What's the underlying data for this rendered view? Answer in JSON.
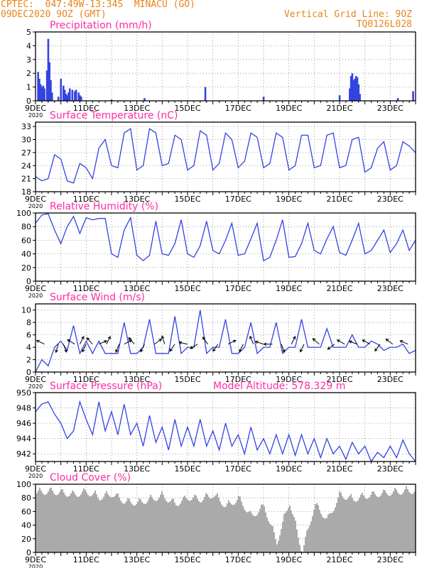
{
  "header": {
    "line1_left": "CPTEC:  047:49W-13:34S  MINACU (GO)",
    "line2_left": "09DEC2020 9OZ (GMT)",
    "line1_right": "Vertical Grid Line: 9OZ",
    "line2_right": "TQ0126L028"
  },
  "colors": {
    "header": "#e8851a",
    "title": "#ff2ba6",
    "line": "#3344e0",
    "cloud": "#aaaaaa",
    "arrow": "#000000"
  },
  "x_ticks": [
    "9DEC",
    "11DEC",
    "13DEC",
    "15DEC",
    "17DEC",
    "19DEC",
    "21DEC",
    "23DEC"
  ],
  "x_tick_sub": "2020",
  "chart_data": [
    {
      "id": "precip",
      "type": "bar",
      "title": "Precipitation (mm/h)",
      "ylim": [
        0,
        5
      ],
      "yticks": [
        "0",
        "1",
        "2",
        "3",
        "4",
        "5"
      ],
      "x": [
        0.1,
        0.15,
        0.2,
        0.25,
        0.3,
        0.35,
        0.45,
        0.5,
        0.55,
        0.6,
        0.65,
        0.9,
        1.0,
        1.1,
        1.15,
        1.2,
        1.25,
        1.3,
        1.35,
        1.45,
        1.55,
        1.6,
        1.7,
        1.75,
        1.8,
        3.0,
        4.3,
        6.7,
        9.0,
        12.0,
        12.4,
        12.45,
        12.5,
        12.55,
        12.6,
        12.65,
        12.7,
        12.75,
        12.8,
        14.3,
        14.9
      ],
      "values": [
        2.1,
        1.6,
        1.2,
        1.0,
        1.1,
        0.9,
        2.2,
        4.5,
        2.8,
        1.5,
        0.6,
        0.3,
        1.6,
        1.1,
        0.8,
        0.5,
        0.4,
        0.6,
        0.9,
        0.8,
        0.7,
        0.8,
        0.6,
        0.4,
        0.3,
        0.1,
        0.2,
        1.0,
        0.3,
        0.4,
        0.9,
        1.8,
        2.0,
        1.5,
        1.6,
        1.8,
        1.7,
        1.2,
        0.5,
        0.2,
        0.7
      ]
    },
    {
      "id": "temp",
      "type": "line",
      "title": "Surface Temperature (nC)",
      "ylim": [
        18,
        34
      ],
      "yticks": [
        "18",
        "21",
        "24",
        "27",
        "30",
        "33"
      ],
      "x": [
        0,
        0.25,
        0.5,
        0.75,
        1,
        1.25,
        1.5,
        1.75,
        2,
        2.25,
        2.5,
        2.75,
        3,
        3.25,
        3.5,
        3.75,
        4,
        4.25,
        4.5,
        4.75,
        5,
        5.25,
        5.5,
        5.75,
        6,
        6.25,
        6.5,
        6.75,
        7,
        7.25,
        7.5,
        7.75,
        8,
        8.25,
        8.5,
        8.75,
        9,
        9.25,
        9.5,
        9.75,
        10,
        10.25,
        10.5,
        10.75,
        11,
        11.25,
        11.5,
        11.75,
        12,
        12.25,
        12.5,
        12.75,
        13,
        13.25,
        13.5,
        13.75,
        14,
        14.25,
        14.5,
        14.75,
        15
      ],
      "values": [
        21.5,
        20.5,
        21,
        26.5,
        25.5,
        20.5,
        20,
        24.5,
        23.5,
        21,
        28,
        30,
        24,
        23.5,
        31.5,
        32.5,
        23,
        24,
        32.5,
        31.5,
        24,
        24.5,
        31,
        30,
        23,
        24,
        32,
        31,
        23,
        24.5,
        31.5,
        30,
        23.5,
        25,
        31.5,
        30.5,
        23.5,
        24.5,
        31.5,
        30.5,
        23,
        24,
        31,
        31,
        23.5,
        24,
        31,
        31.5,
        23.5,
        24,
        30,
        30.5,
        22.5,
        23.5,
        28,
        29.5,
        23,
        24,
        29.5,
        28.5,
        27
      ]
    },
    {
      "id": "rh",
      "type": "line",
      "title": "Relative Humidity (%)",
      "ylim": [
        0,
        100
      ],
      "yticks": [
        "0",
        "20",
        "40",
        "60",
        "80",
        "100"
      ],
      "x": [
        0,
        0.25,
        0.5,
        0.75,
        1,
        1.25,
        1.5,
        1.75,
        2,
        2.25,
        2.5,
        2.75,
        3,
        3.25,
        3.5,
        3.75,
        4,
        4.25,
        4.5,
        4.75,
        5,
        5.25,
        5.5,
        5.75,
        6,
        6.25,
        6.5,
        6.75,
        7,
        7.25,
        7.5,
        7.75,
        8,
        8.25,
        8.5,
        8.75,
        9,
        9.25,
        9.5,
        9.75,
        10,
        10.25,
        10.5,
        10.75,
        11,
        11.25,
        11.5,
        11.75,
        12,
        12.25,
        12.5,
        12.75,
        13,
        13.25,
        13.5,
        13.75,
        14,
        14.25,
        14.5,
        14.75,
        15
      ],
      "values": [
        85,
        97,
        99,
        75,
        55,
        80,
        95,
        70,
        93,
        90,
        92,
        92,
        40,
        35,
        75,
        93,
        38,
        30,
        38,
        88,
        40,
        38,
        55,
        90,
        40,
        35,
        52,
        88,
        45,
        40,
        60,
        85,
        38,
        40,
        62,
        85,
        30,
        35,
        60,
        90,
        35,
        36,
        55,
        85,
        45,
        40,
        62,
        80,
        42,
        38,
        60,
        85,
        40,
        45,
        60,
        75,
        42,
        55,
        75,
        45,
        60
      ]
    },
    {
      "id": "wind",
      "type": "line",
      "title": "Surface Wind (m/s)",
      "ylim": [
        0,
        11
      ],
      "yticks": [
        "0",
        "2",
        "4",
        "6",
        "8",
        "10"
      ],
      "x": [
        0,
        0.25,
        0.5,
        0.75,
        1,
        1.25,
        1.5,
        1.75,
        2,
        2.25,
        2.5,
        2.75,
        3,
        3.25,
        3.5,
        3.75,
        4,
        4.25,
        4.5,
        4.75,
        5,
        5.25,
        5.5,
        5.75,
        6,
        6.25,
        6.5,
        6.75,
        7,
        7.25,
        7.5,
        7.75,
        8,
        8.25,
        8.5,
        8.75,
        9,
        9.25,
        9.5,
        9.75,
        10,
        10.25,
        10.5,
        10.75,
        11,
        11.25,
        11.5,
        11.75,
        12,
        12.25,
        12.5,
        12.75,
        13,
        13.25,
        13.5,
        13.75,
        14,
        14.25,
        14.5,
        14.75,
        15
      ],
      "values": [
        0,
        2,
        1,
        4,
        5,
        3.5,
        7.5,
        3,
        5,
        3,
        5,
        3,
        3,
        3,
        8,
        3,
        3,
        4,
        8.5,
        3,
        3,
        3,
        9,
        3,
        4,
        4,
        10,
        3,
        4,
        4,
        8.5,
        3,
        3,
        4,
        8,
        3,
        4,
        4,
        8,
        3,
        4,
        4,
        8.5,
        4,
        4,
        4,
        7,
        4,
        4,
        4,
        6,
        4,
        4,
        5,
        4.5,
        3.5,
        4,
        4,
        4.5,
        3,
        3.5
      ],
      "arrows": [
        {
          "x": 0.35,
          "u": -1,
          "v": 0.5
        },
        {
          "x": 0.9,
          "u": -0.3,
          "v": -1
        },
        {
          "x": 1.1,
          "u": 0.4,
          "v": -1
        },
        {
          "x": 1.55,
          "u": -0.8,
          "v": 0.5
        },
        {
          "x": 1.75,
          "u": 0.5,
          "v": 1
        },
        {
          "x": 2.0,
          "u": -0.5,
          "v": -1
        },
        {
          "x": 2.25,
          "u": -0.8,
          "v": 0.9
        },
        {
          "x": 2.5,
          "u": 0.7,
          "v": 0.3
        },
        {
          "x": 2.8,
          "u": 0.5,
          "v": 1
        },
        {
          "x": 3.3,
          "u": -0.4,
          "v": -1
        },
        {
          "x": 3.5,
          "u": 0.9,
          "v": 0.5
        },
        {
          "x": 3.9,
          "u": -0.6,
          "v": 0.7
        },
        {
          "x": 4.3,
          "u": -0.5,
          "v": -1
        },
        {
          "x": 4.7,
          "u": 0.8,
          "v": 0.6
        },
        {
          "x": 5.1,
          "u": -0.3,
          "v": 0.9
        },
        {
          "x": 5.5,
          "u": -0.7,
          "v": -1
        },
        {
          "x": 6.0,
          "u": -0.9,
          "v": 0.2
        },
        {
          "x": 6.4,
          "u": -1,
          "v": -0.6
        },
        {
          "x": 6.8,
          "u": -0.5,
          "v": 0.7
        },
        {
          "x": 7.2,
          "u": -0.7,
          "v": -1
        },
        {
          "x": 7.6,
          "u": 0.8,
          "v": 0.4
        },
        {
          "x": 8.2,
          "u": -0.5,
          "v": -1
        },
        {
          "x": 8.6,
          "u": -0.3,
          "v": 0.7
        },
        {
          "x": 9.0,
          "u": -0.9,
          "v": 0.3
        },
        {
          "x": 9.35,
          "u": -1,
          "v": 0
        },
        {
          "x": 9.7,
          "u": 0.4,
          "v": -1
        },
        {
          "x": 10.1,
          "u": 0.5,
          "v": 1
        },
        {
          "x": 10.6,
          "u": -0.4,
          "v": -0.8
        },
        {
          "x": 11.2,
          "u": -0.7,
          "v": 0.6
        },
        {
          "x": 11.8,
          "u": -0.8,
          "v": -0.6
        },
        {
          "x": 12.2,
          "u": -0.7,
          "v": 0.4
        },
        {
          "x": 12.7,
          "u": -0.8,
          "v": 0.3
        },
        {
          "x": 13.2,
          "u": -0.9,
          "v": 0.5
        },
        {
          "x": 13.6,
          "u": -0.6,
          "v": -0.8
        },
        {
          "x": 14.1,
          "u": -0.8,
          "v": 0.6
        },
        {
          "x": 14.7,
          "u": -0.9,
          "v": 0.4
        }
      ]
    },
    {
      "id": "press",
      "type": "line",
      "title": "Surface Pressure (hPa)",
      "ylim": [
        941,
        950
      ],
      "yticks": [
        "942",
        "944",
        "946",
        "948",
        "950"
      ],
      "x": [
        0,
        0.25,
        0.5,
        0.75,
        1,
        1.25,
        1.5,
        1.75,
        2,
        2.25,
        2.5,
        2.75,
        3,
        3.25,
        3.5,
        3.75,
        4,
        4.25,
        4.5,
        4.75,
        5,
        5.25,
        5.5,
        5.75,
        6,
        6.25,
        6.5,
        6.75,
        7,
        7.25,
        7.5,
        7.75,
        8,
        8.25,
        8.5,
        8.75,
        9,
        9.25,
        9.5,
        9.75,
        10,
        10.25,
        10.5,
        10.75,
        11,
        11.25,
        11.5,
        11.75,
        12,
        12.25,
        12.5,
        12.75,
        13,
        13.25,
        13.5,
        13.75,
        14,
        14.25,
        14.5,
        14.75,
        15
      ],
      "values": [
        947.5,
        948.5,
        948.8,
        947.2,
        946,
        944,
        945,
        948.8,
        946.5,
        944.5,
        948.8,
        945,
        947.5,
        944.5,
        948.5,
        944.5,
        946,
        943,
        947,
        943.5,
        945.5,
        942.5,
        946.5,
        943,
        945.5,
        943,
        946.5,
        943,
        945,
        942.5,
        946,
        943,
        944.5,
        942,
        945.5,
        942.5,
        944,
        942,
        944.5,
        942,
        944.5,
        941.8,
        944.5,
        942,
        944,
        941.5,
        944,
        942,
        943,
        941.3,
        943.5,
        942,
        943,
        941,
        942.2,
        941.5,
        943,
        941.5,
        943.8,
        942,
        941
      ]
    },
    {
      "id": "cloud",
      "type": "area",
      "title": "Cloud Cover (%)",
      "ylim": [
        0,
        100
      ],
      "yticks": [
        "0",
        "20",
        "40",
        "60",
        "80",
        "100"
      ],
      "x": [
        0,
        0.5,
        1,
        1.5,
        2,
        2.5,
        3,
        3.5,
        4,
        4.5,
        5,
        5.5,
        6,
        6.5,
        7,
        7.5,
        8,
        8.5,
        9,
        9.5,
        10,
        10.5,
        11,
        11.5,
        12,
        12.5,
        13,
        13.5,
        14,
        14.5,
        15
      ],
      "values": [
        95,
        97,
        95,
        92,
        96,
        88,
        93,
        82,
        80,
        85,
        90,
        78,
        88,
        85,
        92,
        75,
        86,
        60,
        75,
        22,
        82,
        8,
        78,
        55,
        92,
        85,
        90,
        93,
        95,
        97,
        98
      ]
    }
  ],
  "model_altitude": "Model Altitude: 578.329 m"
}
